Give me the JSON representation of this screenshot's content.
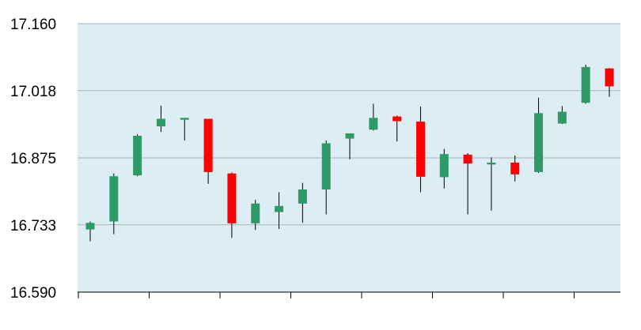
{
  "chart_data": {
    "type": "candlestick",
    "title": "",
    "xlabel": "",
    "ylabel": "",
    "ylim": [
      16.59,
      17.16
    ],
    "y_ticks": [
      "17.160",
      "17.018",
      "16.875",
      "16.733",
      "16.590"
    ],
    "x_tick_count": 8,
    "grid": true,
    "legend": "none",
    "colors": {
      "plot_background": "#dcedf3",
      "up": "#2e9a68",
      "down": "#ff0000",
      "wick": "#000000",
      "grid": "#a9b5bb",
      "axis": "#000000"
    },
    "candles": [
      {
        "open": 16.723,
        "high": 16.74,
        "low": 16.698,
        "close": 16.737
      },
      {
        "open": 16.74,
        "high": 16.842,
        "low": 16.713,
        "close": 16.836
      },
      {
        "open": 16.838,
        "high": 16.925,
        "low": 16.836,
        "close": 16.922
      },
      {
        "open": 16.942,
        "high": 16.986,
        "low": 16.93,
        "close": 16.958
      },
      {
        "open": 16.956,
        "high": 16.96,
        "low": 16.912,
        "close": 16.96
      },
      {
        "open": 16.958,
        "high": 16.958,
        "low": 16.82,
        "close": 16.845
      },
      {
        "open": 16.842,
        "high": 16.844,
        "low": 16.705,
        "close": 16.736
      },
      {
        "open": 16.736,
        "high": 16.786,
        "low": 16.722,
        "close": 16.778
      },
      {
        "open": 16.76,
        "high": 16.802,
        "low": 16.724,
        "close": 16.773
      },
      {
        "open": 16.778,
        "high": 16.822,
        "low": 16.737,
        "close": 16.808
      },
      {
        "open": 16.808,
        "high": 16.912,
        "low": 16.755,
        "close": 16.906
      },
      {
        "open": 16.916,
        "high": 16.927,
        "low": 16.872,
        "close": 16.927
      },
      {
        "open": 16.935,
        "high": 16.99,
        "low": 16.933,
        "close": 16.96
      },
      {
        "open": 16.963,
        "high": 16.965,
        "low": 16.91,
        "close": 16.953
      },
      {
        "open": 16.952,
        "high": 16.984,
        "low": 16.802,
        "close": 16.835
      },
      {
        "open": 16.834,
        "high": 16.894,
        "low": 16.81,
        "close": 16.883
      },
      {
        "open": 16.882,
        "high": 16.885,
        "low": 16.755,
        "close": 16.863
      },
      {
        "open": 16.861,
        "high": 16.876,
        "low": 16.763,
        "close": 16.865
      },
      {
        "open": 16.865,
        "high": 16.88,
        "low": 16.825,
        "close": 16.84
      },
      {
        "open": 16.845,
        "high": 17.003,
        "low": 16.843,
        "close": 16.97
      },
      {
        "open": 16.948,
        "high": 16.985,
        "low": 16.947,
        "close": 16.973
      },
      {
        "open": 16.992,
        "high": 17.073,
        "low": 16.99,
        "close": 17.068
      },
      {
        "open": 17.065,
        "high": 17.066,
        "low": 17.005,
        "close": 17.027
      }
    ]
  }
}
